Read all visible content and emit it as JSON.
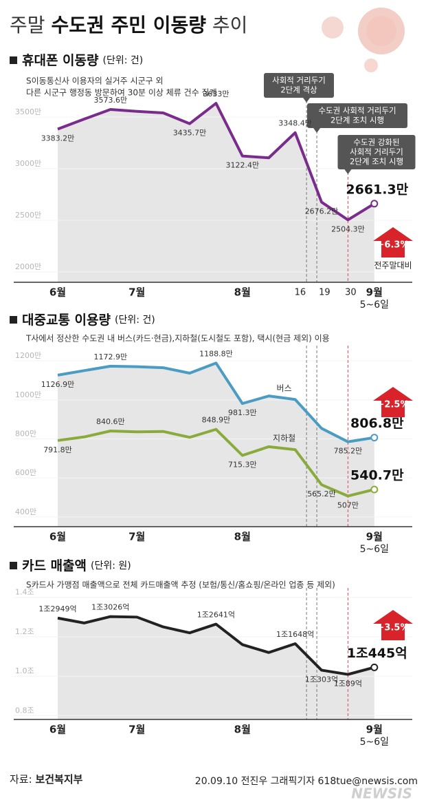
{
  "header": {
    "title_parts": [
      "주말",
      "수도권 주민 이동량",
      "추이"
    ]
  },
  "chart_data": [
    {
      "type": "line",
      "title": "휴대폰 이동량",
      "unit": "(단위: 건)",
      "note": [
        "S이동통신사 이용자의 실거주 시군구 외",
        "다른 시군구 행정동 방문하여 30분 이상 체류 건수 집계"
      ],
      "categories": [
        "6월",
        null,
        null,
        "7월",
        null,
        null,
        null,
        "8월",
        null,
        null,
        null,
        null,
        "9월"
      ],
      "x_note": "5~6일",
      "values": [
        3383.2,
        3480,
        3573.6,
        3555,
        3540,
        3435.7,
        3633,
        3122.4,
        3105,
        3348.4,
        2676.2,
        2504.3,
        2661.3
      ],
      "value_labels": [
        "3383.2만",
        null,
        "3573.6만",
        null,
        null,
        "3435.7만",
        "3633만",
        "3122.4만",
        null,
        "3348.4만",
        "2676.2만",
        "2504.3만",
        "2661.3만"
      ],
      "color": "#7a2c8c",
      "ylim": [
        1900,
        3900
      ],
      "yticks": [
        {
          "value": 2000,
          "label": "2000만"
        },
        {
          "value": 2500,
          "label": "2500만"
        },
        {
          "value": 3000,
          "label": "3000만"
        },
        {
          "value": 3500,
          "label": "3500만"
        }
      ],
      "grid": true,
      "vlines": [
        {
          "at": 9.43,
          "label": "16",
          "callout": [
            "사회적 거리두기",
            "2단계 격상"
          ]
        },
        {
          "at": 9.82,
          "label": "19",
          "callout": [
            "수도권 사회적 거리두기",
            "2단계 조치 시행"
          ]
        },
        {
          "at": 11.0,
          "label": "30",
          "callout": [
            "수도권 강화된",
            "사회적 거리두기",
            "2단계 조치 시행"
          ]
        }
      ],
      "badge": "+6.3%",
      "badge_note": "전주말대비"
    },
    {
      "type": "line",
      "title": "대중교통 이용량",
      "unit": "(단위: 건)",
      "note": [
        "T사에서 정산한 수도권 내 버스(카드·현금),지하철(도시철도 포함), 택시(현금 제외) 이용"
      ],
      "categories": [
        "6월",
        null,
        null,
        "7월",
        null,
        null,
        null,
        "8월",
        null,
        null,
        null,
        null,
        "9월"
      ],
      "x_note": "5~6일",
      "series": [
        {
          "name": "버스",
          "color": "#4a9cc2",
          "values": [
            1126.9,
            1150,
            1172.9,
            1170,
            1165,
            1137,
            1188.8,
            981.3,
            1020,
            1002,
            854,
            785.2,
            806.8
          ],
          "value_labels": [
            "1126.9만",
            null,
            "1172.9만",
            null,
            null,
            null,
            "1188.8만",
            "981.3만",
            null,
            null,
            null,
            "785.2만",
            "806.8만"
          ]
        },
        {
          "name": "지하철",
          "color": "#8aaa3c",
          "values": [
            791.8,
            810,
            840.6,
            836,
            838,
            808,
            848.9,
            715.3,
            760,
            745,
            565.2,
            507,
            540.7
          ],
          "value_labels": [
            "791.8만",
            null,
            "840.6만",
            null,
            null,
            null,
            "848.9만",
            "715.3만",
            null,
            null,
            "565.2만",
            "507만",
            "540.7만"
          ]
        }
      ],
      "ylim": [
        350,
        1250
      ],
      "yticks": [
        {
          "value": 400,
          "label": "400만"
        },
        {
          "value": 600,
          "label": "600만"
        },
        {
          "value": 800,
          "label": "800만"
        },
        {
          "value": 1000,
          "label": "1000만"
        },
        {
          "value": 1200,
          "label": "1200만"
        }
      ],
      "grid": true,
      "vlines": [
        {
          "at": 9.43
        },
        {
          "at": 9.82
        },
        {
          "at": 11.0
        }
      ],
      "badge": "+2.5%"
    },
    {
      "type": "line",
      "title": "카드 매출액",
      "unit": "(단위: 원)",
      "note": [
        "S카드사 가맹점 매출액으로 전체 카드매출액 추정 (보험/통신/홈쇼핑/온라인 업종 등 제외)"
      ],
      "categories": [
        "6월",
        null,
        null,
        "7월",
        null,
        null,
        null,
        "8월",
        null,
        null,
        null,
        null,
        "9월"
      ],
      "x_note": "5~6일",
      "values": [
        1.2949,
        1.27,
        1.3026,
        1.3,
        1.25,
        1.22,
        1.2641,
        1.16,
        1.12,
        1.1648,
        1.0303,
        1.0089,
        1.0445
      ],
      "value_labels": [
        "1조2949억",
        null,
        "1조3026억",
        null,
        null,
        null,
        "1조2641억",
        null,
        null,
        "1조1648억",
        "1조303억",
        "1조89억",
        "1조445억"
      ],
      "color": "#222222",
      "ylim": [
        0.78,
        1.42
      ],
      "yticks": [
        {
          "value": 0.8,
          "label": "0.8조"
        },
        {
          "value": 1.0,
          "label": "1.0조"
        },
        {
          "value": 1.2,
          "label": "1.2조"
        },
        {
          "value": 1.4,
          "label": "1.4조"
        }
      ],
      "grid": true,
      "vlines": [
        {
          "at": 9.43
        },
        {
          "at": 9.82
        },
        {
          "at": 11.0
        }
      ],
      "badge": "+3.5%"
    }
  ],
  "footer": {
    "source_label": "자료:",
    "source": "보건복지부",
    "credit": "20.09.10 전진우 그래픽기자 618tue@newsis.com",
    "watermark": "NEWSIS"
  }
}
